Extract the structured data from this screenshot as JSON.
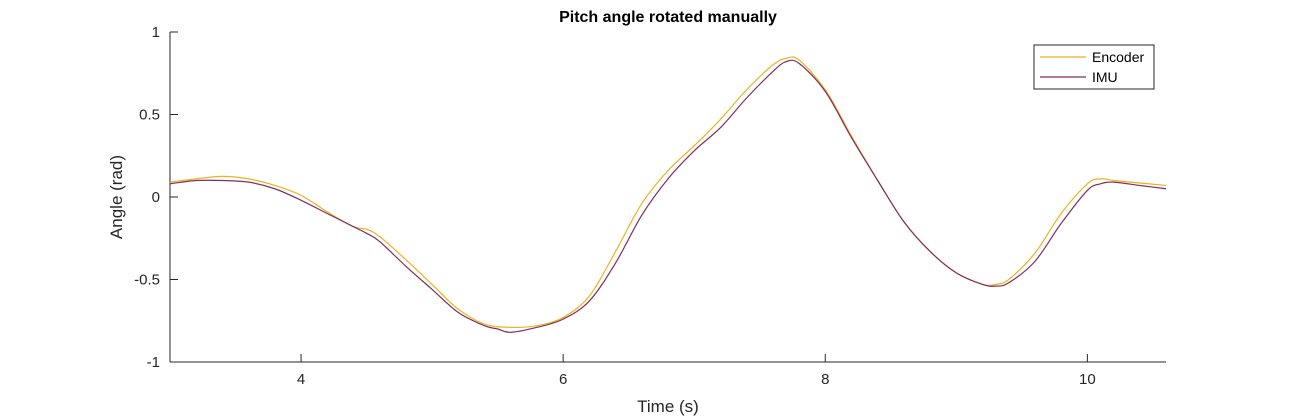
{
  "chart_data": {
    "type": "line",
    "title": "Pitch angle rotated manually",
    "xlabel": "Time (s)",
    "ylabel": "Angle (rad)",
    "xlim": [
      3,
      10.6
    ],
    "ylim": [
      -1,
      1
    ],
    "xticks": [
      4,
      6,
      8,
      10
    ],
    "yticks": [
      -1,
      -0.5,
      0,
      0.5,
      1
    ],
    "xtick_labels": [
      "4",
      "6",
      "8",
      "10"
    ],
    "ytick_labels": [
      "-1",
      "-0.5",
      "0",
      "0.5",
      "1"
    ],
    "grid": false,
    "legend_position": "top-right",
    "series": [
      {
        "name": "Encoder",
        "color": "#EDB120",
        "x": [
          3.0,
          3.2,
          3.4,
          3.6,
          3.8,
          4.0,
          4.2,
          4.4,
          4.5,
          4.6,
          4.8,
          5.0,
          5.2,
          5.4,
          5.6,
          5.8,
          6.0,
          6.2,
          6.4,
          6.6,
          6.8,
          7.0,
          7.2,
          7.4,
          7.6,
          7.7,
          7.8,
          8.0,
          8.2,
          8.4,
          8.6,
          8.8,
          9.0,
          9.2,
          9.3,
          9.4,
          9.6,
          9.8,
          10.0,
          10.1,
          10.2,
          10.4,
          10.6
        ],
        "y": [
          0.09,
          0.11,
          0.125,
          0.11,
          0.07,
          0.01,
          -0.09,
          -0.18,
          -0.195,
          -0.24,
          -0.38,
          -0.53,
          -0.68,
          -0.77,
          -0.79,
          -0.78,
          -0.73,
          -0.6,
          -0.33,
          -0.04,
          0.16,
          0.31,
          0.47,
          0.65,
          0.8,
          0.84,
          0.83,
          0.65,
          0.37,
          0.1,
          -0.15,
          -0.33,
          -0.46,
          -0.53,
          -0.53,
          -0.5,
          -0.34,
          -0.1,
          0.08,
          0.11,
          0.1,
          0.085,
          0.07
        ]
      },
      {
        "name": "IMU",
        "color": "#7E2F5E",
        "x": [
          3.0,
          3.2,
          3.4,
          3.6,
          3.8,
          4.0,
          4.2,
          4.4,
          4.5,
          4.6,
          4.8,
          5.0,
          5.2,
          5.4,
          5.5,
          5.6,
          5.8,
          6.0,
          6.2,
          6.4,
          6.6,
          6.8,
          7.0,
          7.2,
          7.4,
          7.6,
          7.7,
          7.8,
          8.0,
          8.2,
          8.4,
          8.6,
          8.8,
          9.0,
          9.2,
          9.3,
          9.4,
          9.6,
          9.8,
          10.0,
          10.1,
          10.2,
          10.4,
          10.6
        ],
        "y": [
          0.08,
          0.1,
          0.1,
          0.09,
          0.05,
          -0.02,
          -0.1,
          -0.18,
          -0.22,
          -0.27,
          -0.42,
          -0.56,
          -0.7,
          -0.78,
          -0.8,
          -0.82,
          -0.79,
          -0.74,
          -0.63,
          -0.4,
          -0.11,
          0.11,
          0.28,
          0.42,
          0.6,
          0.76,
          0.82,
          0.81,
          0.64,
          0.36,
          0.1,
          -0.15,
          -0.33,
          -0.46,
          -0.53,
          -0.54,
          -0.52,
          -0.39,
          -0.16,
          0.04,
          0.08,
          0.09,
          0.07,
          0.05
        ]
      }
    ]
  }
}
